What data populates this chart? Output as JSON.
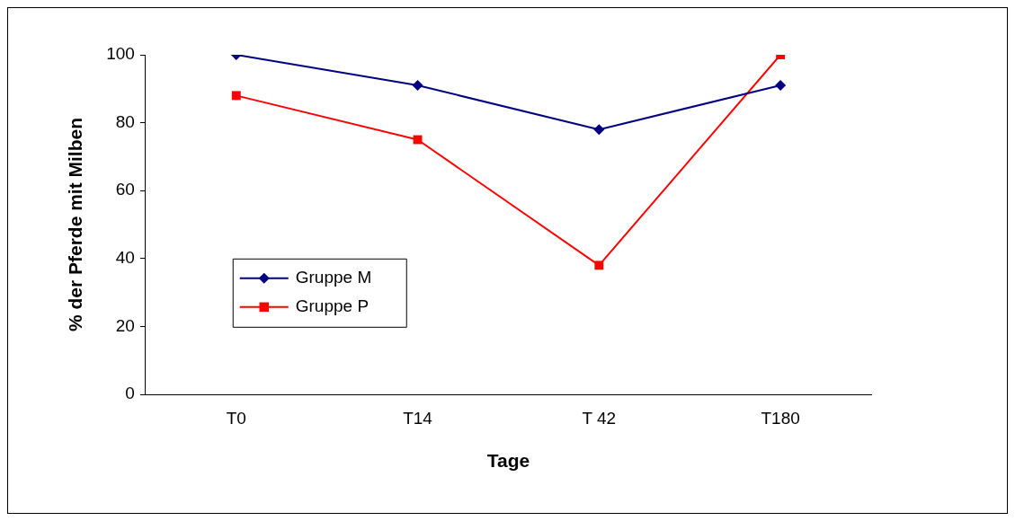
{
  "chart_data": {
    "type": "line",
    "xlabel": "Tage",
    "ylabel": "% der Pferde mit Milben",
    "categories": [
      "T0",
      "T14",
      "T 42",
      "T180"
    ],
    "series": [
      {
        "name": "Gruppe M",
        "color": "#000080",
        "marker": "diamond",
        "values": [
          100,
          91,
          78,
          91
        ]
      },
      {
        "name": "Gruppe P",
        "color": "#ff0000",
        "marker": "square",
        "values": [
          88,
          75,
          38,
          100
        ]
      }
    ],
    "ylim": [
      0,
      100
    ],
    "yticks": [
      0,
      20,
      40,
      60,
      80,
      100
    ],
    "grid": false,
    "legend": "left"
  }
}
